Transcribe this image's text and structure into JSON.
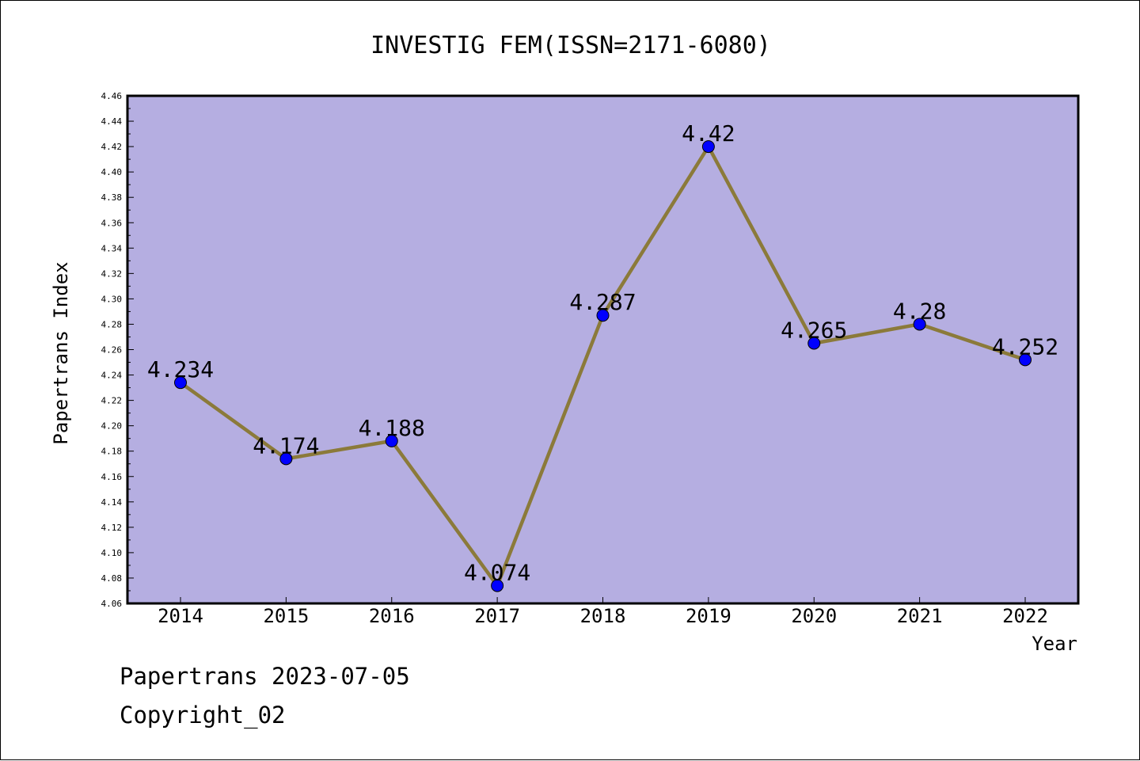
{
  "chart_data": {
    "type": "line",
    "title": "INVESTIG FEM(ISSN=2171-6080)",
    "xlabel": "Year",
    "ylabel": "Papertrans Index",
    "categories": [
      "2014",
      "2015",
      "2016",
      "2017",
      "2018",
      "2019",
      "2020",
      "2021",
      "2022"
    ],
    "series": [
      {
        "values": [
          4.234,
          4.174,
          4.188,
          4.074,
          4.287,
          4.42,
          4.265,
          4.28,
          4.252
        ],
        "labels": [
          "4.234",
          "4.174",
          "4.188",
          "4.074",
          "4.287",
          "4.42",
          "4.265",
          "4.28",
          "4.252"
        ]
      }
    ],
    "ylim": [
      4.06,
      4.46
    ],
    "yticks": [
      "4.06",
      "4.08",
      "4.10",
      "4.12",
      "4.14",
      "4.16",
      "4.18",
      "4.20",
      "4.22",
      "4.24",
      "4.26",
      "4.28",
      "4.30",
      "4.32",
      "4.34",
      "4.36",
      "4.38",
      "4.40",
      "4.42",
      "4.44",
      "4.46"
    ],
    "grid": false,
    "colors": {
      "plot_background": "#b5aee1",
      "line": "#8b7a3a",
      "marker": "#0000ff"
    }
  },
  "footer": {
    "date_line": "Papertrans 2023-07-05",
    "copyright_line": "Copyright_02"
  }
}
